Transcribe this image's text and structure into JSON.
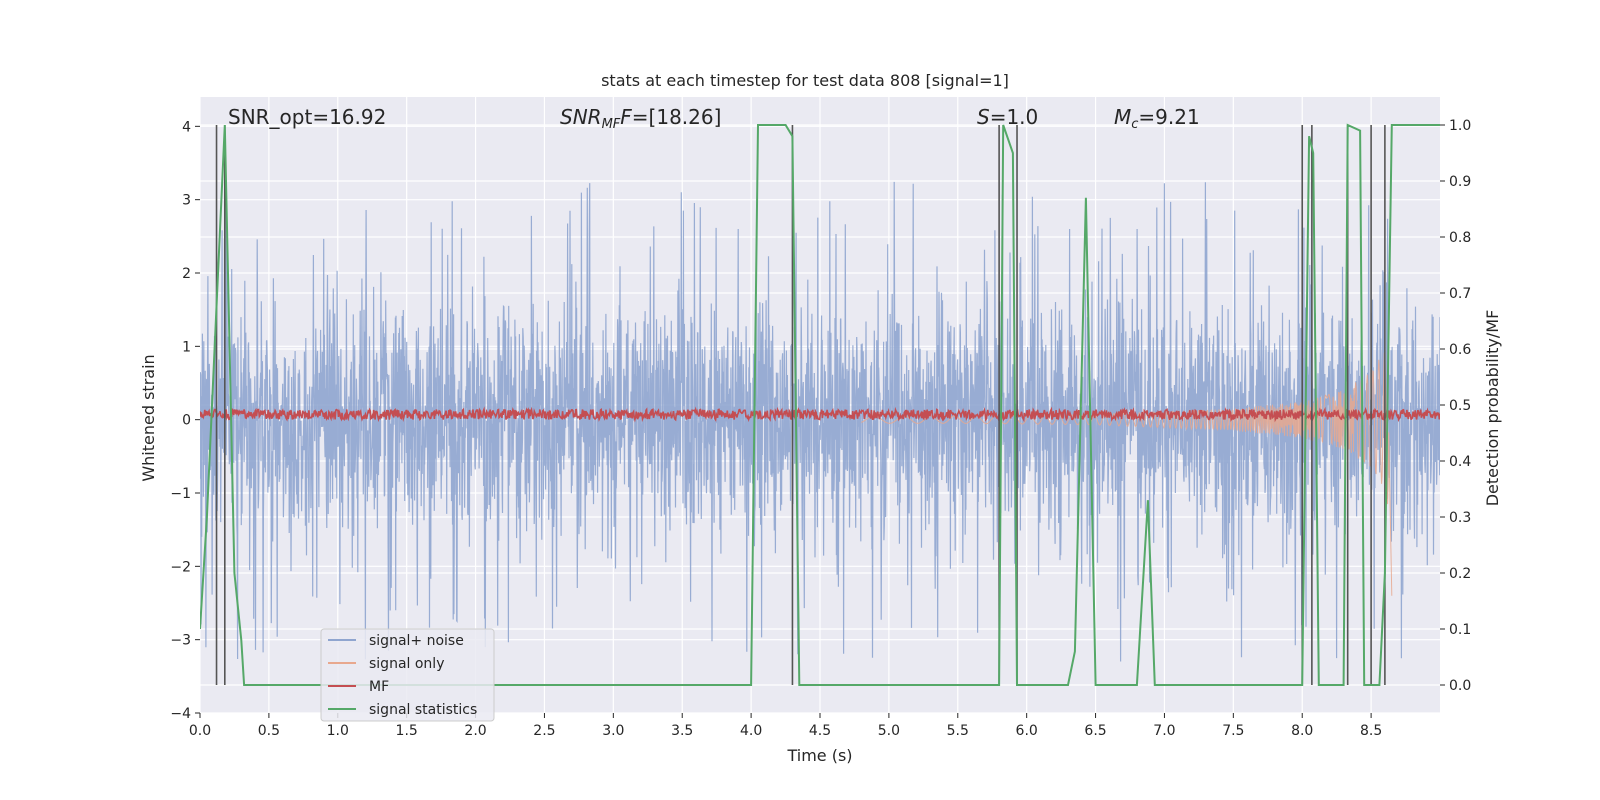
{
  "chart_data": {
    "type": "line",
    "title": "stats at each timestep for test data 808 [signal=1]",
    "xlabel": "Time (s)",
    "ylabel": "Whitened strain",
    "y2label": "Detection probability/MF",
    "xlim": [
      0,
      9
    ],
    "ylim": [
      -4,
      4.4
    ],
    "y2lim": [
      -0.05,
      1.05
    ],
    "x_ticks": [
      "0.0",
      "0.5",
      "1.0",
      "1.5",
      "2.0",
      "2.5",
      "3.0",
      "3.5",
      "4.0",
      "4.5",
      "5.0",
      "5.5",
      "6.0",
      "6.5",
      "7.0",
      "7.5",
      "8.0",
      "8.5"
    ],
    "y_ticks": [
      "−4",
      "−3",
      "−2",
      "−1",
      "0",
      "1",
      "2",
      "3",
      "4"
    ],
    "y2_ticks": [
      "0.0",
      "0.1",
      "0.2",
      "0.3",
      "0.4",
      "0.5",
      "0.6",
      "0.7",
      "0.8",
      "0.9",
      "1.0"
    ],
    "grid": true,
    "legend_placement": "lower-left",
    "annotations": {
      "snr_opt": "SNR_opt=16.92",
      "snr_mf_prefix": "SNR",
      "snr_mf_sub": "MF",
      "snr_mf_suffix": "=[18.26]",
      "s_var": "S",
      "s_value": "=1.0",
      "mc_var": "M",
      "mc_sub": "c",
      "mc_value": "=9.21"
    },
    "series": [
      {
        "name": "signal+ noise",
        "color": "#8fa5cf",
        "stats": {
          "typical_amplitude": 1.3,
          "peak_max": 3.4,
          "peak_min": -3.6
        }
      },
      {
        "name": "signal only",
        "color": "#e8a88e",
        "envelope": {
          "x": [
            5.5,
            6.5,
            7.5,
            8.0,
            8.3,
            8.5,
            8.6,
            8.63
          ],
          "amp": [
            0.05,
            0.07,
            0.15,
            0.25,
            0.4,
            0.65,
            0.95,
            1.3
          ]
        }
      },
      {
        "name": "MF",
        "color": "#c44e52",
        "level": 0.07,
        "stats": {
          "jitter": 0.07
        }
      },
      {
        "name": "signal statistics",
        "color": "#55a868",
        "x": [
          0.0,
          0.05,
          0.18,
          0.25,
          0.3,
          0.32,
          4.0,
          4.05,
          4.25,
          4.3,
          4.35,
          5.8,
          5.83,
          5.9,
          5.93,
          6.0,
          6.3,
          6.35,
          6.43,
          6.5,
          6.8,
          6.88,
          6.93,
          8.0,
          8.05,
          8.08,
          8.12,
          8.3,
          8.33,
          8.42,
          8.45,
          8.52,
          8.56,
          8.6,
          8.65,
          8.72,
          9.0
        ],
        "values": [
          0.1,
          0.3,
          1.0,
          0.2,
          0.08,
          0.0,
          0.0,
          1.0,
          1.0,
          0.98,
          0.0,
          0.0,
          1.0,
          0.95,
          0.0,
          0.0,
          0.0,
          0.06,
          0.87,
          0.0,
          0.0,
          0.33,
          0.0,
          0.0,
          0.98,
          0.95,
          0.0,
          0.0,
          1.0,
          0.99,
          0.0,
          0.0,
          0.0,
          0.2,
          1.0,
          1.0,
          1.0
        ]
      },
      {
        "name": "",
        "color": "#555555",
        "type": "vlines",
        "x": [
          0.12,
          0.18,
          4.3,
          5.8,
          5.93,
          8.0,
          8.07,
          8.33,
          8.5,
          8.6
        ]
      }
    ]
  }
}
